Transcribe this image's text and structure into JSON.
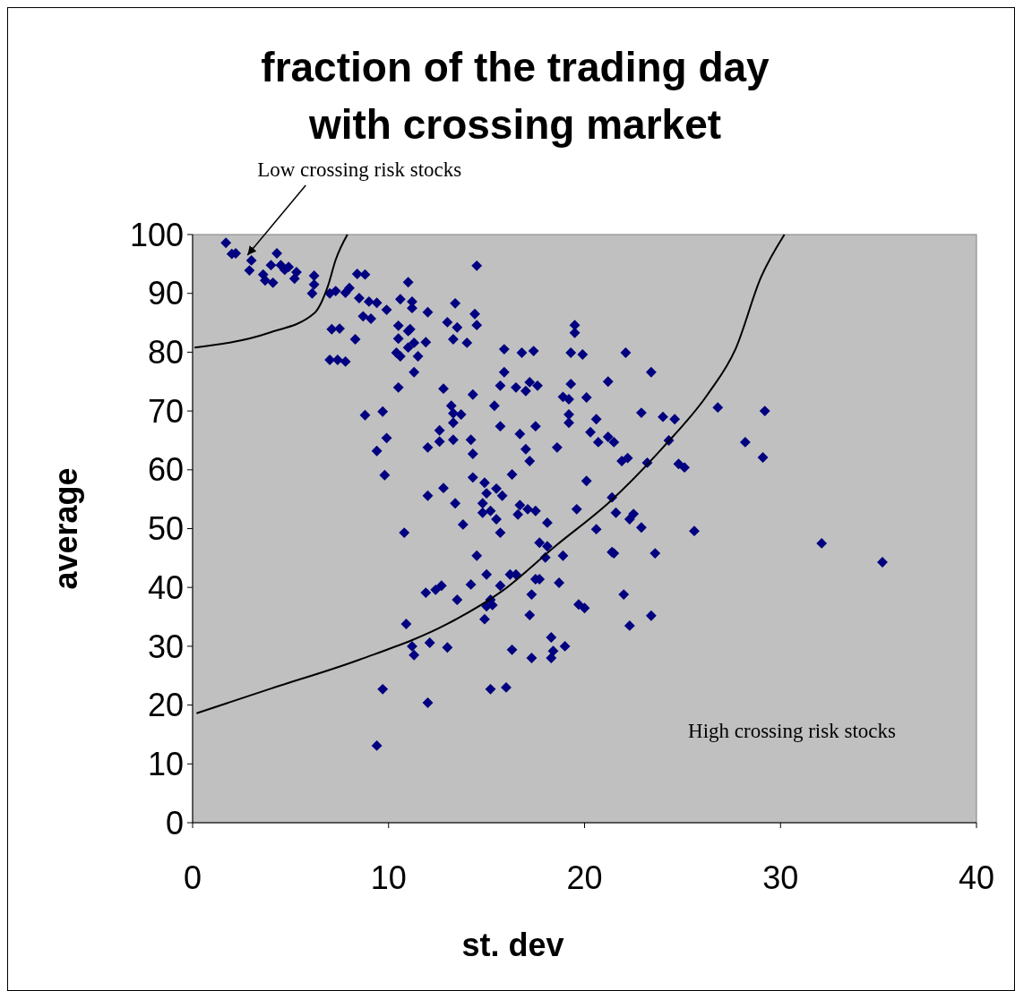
{
  "chart_data": {
    "type": "scatter",
    "title": "fraction of the trading day with crossing market",
    "xlabel": "st. dev",
    "ylabel": "average",
    "xlim": [
      0,
      40
    ],
    "ylim": [
      0,
      100
    ],
    "xticks": [
      0,
      10,
      20,
      30,
      40
    ],
    "yticks": [
      0,
      10,
      20,
      30,
      40,
      50,
      60,
      70,
      80,
      90,
      100
    ],
    "grid": false,
    "legend": false,
    "annotations": [
      {
        "text": "Low crossing risk stocks",
        "x": 2.8,
        "y": 96.5
      },
      "High crossing risk stocks"
    ],
    "series": [
      {
        "marker": "diamond",
        "color": "#000080",
        "x": [
          1.7,
          2.0,
          2.2,
          2.9,
          3.0,
          3.6,
          3.7,
          4.0,
          4.1,
          4.3,
          4.5,
          4.7,
          4.9,
          5.2,
          5.3,
          6.2,
          6.2,
          6.1,
          7.0,
          7.3,
          7.8,
          8.0,
          7.1,
          7.5,
          7.0,
          7.4,
          7.8,
          8.4,
          8.8,
          8.5,
          8.7,
          9.1,
          9.0,
          9.4,
          8.3,
          8.8,
          9.9,
          9.7,
          9.9,
          9.4,
          9.8,
          10.6,
          11.0,
          11.2,
          11.2,
          11.0,
          10.5,
          10.5,
          10.4,
          10.6,
          11.1,
          11.3,
          11.0,
          11.5,
          11.3,
          10.5,
          11.9,
          12.0,
          14.5,
          13.4,
          14.4,
          14.5,
          13.0,
          13.5,
          13.3,
          14.0,
          15.9,
          16.8,
          17.4,
          19.3,
          19.9,
          22.1,
          15.9,
          12.8,
          15.7,
          16.5,
          17.0,
          17.2,
          17.6,
          19.3,
          21.2,
          14.3,
          18.9,
          19.2,
          20.1,
          13.2,
          13.3,
          13.7,
          13.3,
          15.4,
          19.2,
          19.2,
          20.6,
          22.9,
          15.7,
          17.5,
          12.6,
          12.6,
          13.3,
          14.2,
          16.7,
          20.3,
          20.7,
          21.2,
          21.5,
          12.0,
          17.0,
          18.6,
          14.3,
          17.2,
          21.9,
          22.2,
          14.3,
          16.3,
          20.1,
          14.9,
          12.8,
          15.0,
          15.5,
          15.8,
          12.0,
          13.4,
          14.8,
          21.4,
          16.7,
          16.6,
          17.1,
          17.5,
          14.8,
          15.2,
          15.5,
          19.6,
          21.6,
          22.5,
          22.3,
          13.8,
          18.1,
          22.9,
          10.8,
          15.7,
          20.6,
          14.5,
          17.7,
          18.1,
          18.0,
          18.9,
          21.4,
          15.0,
          14.2,
          16.2,
          16.5,
          15.7,
          17.5,
          17.7,
          18.7,
          11.9,
          12.4,
          12.7,
          13.5,
          15.2,
          15.0,
          15.3,
          17.3,
          17.2,
          19.7,
          20.0,
          22.0,
          14.9,
          22.3,
          10.9,
          11.2,
          11.3,
          12.1,
          13.0,
          16.3,
          17.3,
          18.3,
          18.4,
          18.3,
          19.0,
          9.7,
          12.0,
          15.2,
          16.0,
          9.4,
          19.5,
          19.5,
          23.4,
          24.0,
          24.6,
          26.8,
          29.2,
          24.3,
          28.2,
          29.1,
          23.2,
          24.8,
          25.1,
          25.6,
          21.5,
          23.6,
          23.4,
          32.1,
          35.2
        ],
        "values": [
          98.6,
          96.7,
          96.8,
          93.9,
          95.6,
          93.2,
          92.2,
          94.8,
          91.8,
          96.8,
          94.8,
          94.0,
          94.5,
          92.5,
          93.6,
          93.0,
          91.5,
          90.0,
          90.0,
          90.4,
          90.1,
          90.9,
          83.9,
          84.0,
          78.7,
          78.7,
          78.4,
          93.3,
          93.2,
          89.2,
          86.1,
          85.7,
          88.6,
          88.4,
          82.2,
          69.3,
          87.2,
          69.9,
          65.4,
          63.2,
          59.1,
          89.0,
          91.9,
          88.6,
          87.5,
          83.6,
          84.5,
          82.3,
          79.9,
          79.3,
          83.9,
          81.6,
          80.8,
          79.3,
          76.6,
          74.0,
          81.7,
          86.8,
          94.7,
          88.3,
          86.5,
          84.6,
          85.1,
          84.2,
          82.2,
          81.6,
          80.5,
          79.9,
          80.2,
          79.9,
          79.6,
          79.9,
          76.6,
          73.8,
          74.3,
          74.0,
          73.4,
          74.9,
          74.3,
          74.6,
          75.0,
          72.8,
          72.4,
          72.0,
          72.3,
          70.9,
          69.6,
          69.4,
          68.0,
          70.9,
          69.4,
          68.0,
          68.6,
          69.7,
          67.4,
          67.4,
          66.7,
          64.8,
          65.1,
          65.1,
          66.1,
          66.4,
          64.7,
          65.6,
          64.7,
          63.8,
          63.5,
          63.8,
          62.7,
          61.5,
          61.5,
          62.0,
          58.7,
          59.2,
          58.1,
          57.8,
          56.9,
          56.0,
          56.8,
          55.6,
          55.6,
          54.3,
          54.3,
          55.3,
          54.0,
          52.4,
          53.3,
          53.0,
          52.7,
          53.0,
          51.6,
          53.3,
          52.7,
          52.5,
          51.6,
          50.7,
          51.0,
          50.2,
          49.3,
          49.3,
          49.9,
          45.4,
          47.6,
          47.0,
          45.1,
          45.4,
          46.0,
          42.2,
          40.5,
          42.2,
          42.2,
          40.3,
          41.4,
          41.4,
          40.8,
          39.1,
          39.6,
          40.3,
          37.9,
          37.9,
          36.8,
          37.0,
          38.8,
          35.3,
          37.1,
          36.5,
          38.8,
          34.6,
          33.5,
          33.8,
          30.0,
          28.5,
          30.6,
          29.8,
          29.4,
          28.0,
          31.5,
          29.2,
          28.0,
          30.0,
          22.7,
          20.4,
          22.7,
          23.0,
          13.1,
          84.6,
          83.3,
          76.6,
          69.0,
          68.6,
          70.6,
          70.0,
          65.0,
          64.7,
          62.1,
          61.2,
          61.0,
          60.4,
          49.6,
          45.8,
          45.8,
          35.2,
          47.5,
          44.3
        ]
      },
      {
        "type": "line",
        "marker": "none",
        "color": "#000000",
        "x": [
          0.1,
          3.9,
          6.2,
          6.9,
          7.3,
          7.9
        ],
        "values": [
          80.8,
          83.3,
          86.6,
          91.2,
          95.7,
          100
        ]
      },
      {
        "type": "line",
        "marker": "none",
        "color": "#000000",
        "x": [
          0.2,
          3.9,
          8.5,
          13.0,
          15.8,
          18.5,
          21.3,
          24.0,
          26.3,
          27.7,
          29.0,
          30.2
        ],
        "values": [
          18.6,
          22.7,
          27.7,
          33.8,
          39.4,
          47.0,
          54.6,
          63.8,
          72.9,
          80.5,
          92.7,
          100
        ]
      }
    ]
  }
}
